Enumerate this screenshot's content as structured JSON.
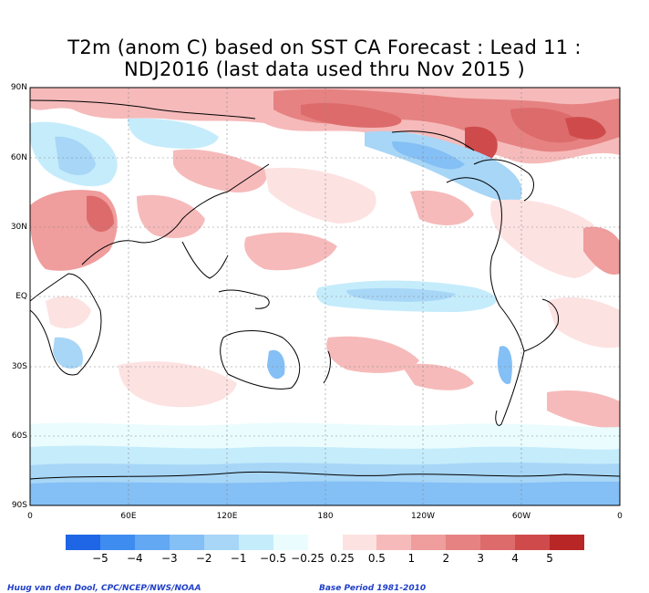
{
  "title_line1": "T2m (anom C) based on SST CA Forecast : Lead 11 :",
  "title_line2": "NDJ2016 (last data used thru Nov 2015 )",
  "lat_labels": [
    "90N",
    "60N",
    "30N",
    "EQ",
    "30S",
    "60S",
    "90S"
  ],
  "lon_labels": [
    "0",
    "60E",
    "120E",
    "180",
    "120W",
    "60W",
    "0"
  ],
  "legend": {
    "colors": [
      "#1f66e6",
      "#3f8cf0",
      "#62a8f2",
      "#84bff5",
      "#a7d6f7",
      "#c5ecfb",
      "#eafcfd",
      "#ffffff",
      "#fde2e2",
      "#f6baba",
      "#ef9d9d",
      "#e68282",
      "#dd6b6b",
      "#cf4b4b",
      "#b82626"
    ],
    "labels": [
      "−5",
      "−4",
      "−3",
      "−2",
      "−1",
      "−0.5",
      "−0.25",
      "0.25",
      "0.5",
      "1",
      "2",
      "3",
      "4",
      "5"
    ]
  },
  "credit_left": "Huug van den Dool, CPC/NCEP/NWS/NOAA",
  "credit_right": "Base Period 1981-2010"
}
